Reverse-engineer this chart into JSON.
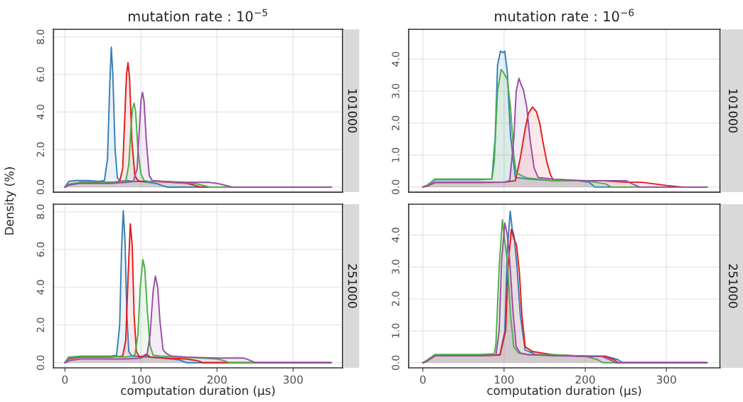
{
  "chart_data": [
    {
      "type": "area",
      "title": "mutation rate : 10$^{−5}$",
      "annotations": [
        "101000"
      ],
      "xlim": [
        -15,
        365
      ],
      "xticks": [
        0,
        100,
        200,
        300
      ],
      "ylim": [
        -0.27,
        8.4
      ],
      "yticks": [
        {
          "value": 0,
          "label": "0.0"
        },
        {
          "value": 2,
          "label": "2.0"
        },
        {
          "value": 4,
          "label": "4.0"
        },
        {
          "value": 6,
          "label": "6.0"
        },
        {
          "value": 8,
          "label": "8.0"
        }
      ],
      "tick_labels": "y",
      "grid": true,
      "series": [
        {
          "color": "#377eb8",
          "x": [
            0,
            5,
            15,
            30,
            45,
            52,
            56,
            59,
            61,
            63,
            66,
            69,
            73,
            80,
            90,
            100,
            110,
            120,
            128,
            135,
            350
          ],
          "values": [
            0,
            0.3,
            0.35,
            0.35,
            0.3,
            0.35,
            1.5,
            5.5,
            7.45,
            6.0,
            2.0,
            0.5,
            0.3,
            0.35,
            0.3,
            0.3,
            0.25,
            0.2,
            0.08,
            0,
            0
          ]
        },
        {
          "color": "#e41a1c",
          "x": [
            0,
            5,
            20,
            40,
            60,
            72,
            76,
            79,
            81,
            83,
            85,
            88,
            92,
            96,
            100,
            120,
            140,
            160,
            170,
            178,
            350
          ],
          "values": [
            0,
            0.15,
            0.25,
            0.25,
            0.25,
            0.3,
            1.0,
            4.0,
            6.0,
            6.62,
            5.8,
            2.5,
            0.6,
            0.35,
            0.3,
            0.3,
            0.25,
            0.2,
            0.1,
            0,
            0
          ]
        },
        {
          "color": "#4daf4a",
          "x": [
            0,
            5,
            20,
            40,
            60,
            80,
            84,
            87,
            89,
            91,
            93,
            96,
            100,
            104,
            110,
            130,
            150,
            170,
            180,
            190,
            350
          ],
          "values": [
            0,
            0.15,
            0.25,
            0.25,
            0.25,
            0.3,
            1.2,
            3.2,
            4.2,
            4.47,
            4.0,
            2.0,
            0.7,
            0.35,
            0.3,
            0.3,
            0.25,
            0.2,
            0.1,
            0,
            0
          ]
        },
        {
          "color": "#984ea3",
          "x": [
            0,
            5,
            20,
            40,
            60,
            80,
            90,
            95,
            98,
            100,
            102,
            104,
            107,
            111,
            115,
            130,
            160,
            190,
            200,
            210,
            220,
            350
          ],
          "values": [
            0,
            0.1,
            0.2,
            0.2,
            0.2,
            0.25,
            0.3,
            1.0,
            3.2,
            4.6,
            5.04,
            4.6,
            2.5,
            0.6,
            0.35,
            0.3,
            0.25,
            0.25,
            0.2,
            0.1,
            0,
            0
          ]
        }
      ]
    },
    {
      "type": "area",
      "title": "mutation rate : 10$^{−6}$",
      "annotations": [
        "101000"
      ],
      "xlim": [
        -17.5,
        366
      ],
      "xticks": [
        0,
        100,
        200,
        300
      ],
      "ylim": [
        -0.16,
        4.93
      ],
      "yticks": [
        {
          "value": 0,
          "label": "0.0"
        },
        {
          "value": 1,
          "label": "1.0"
        },
        {
          "value": 2,
          "label": "2.0"
        },
        {
          "value": 3,
          "label": "3.0"
        },
        {
          "value": 4,
          "label": "4.0"
        }
      ],
      "tick_labels": "y",
      "grid": true,
      "series": [
        {
          "color": "#377eb8",
          "x": [
            0,
            5,
            15,
            40,
            70,
            85,
            89,
            92,
            95.6,
            98.5,
            100.9,
            104,
            108,
            114,
            130,
            160,
            190,
            205,
            212,
            350
          ],
          "values": [
            0,
            0.05,
            0.23,
            0.23,
            0.23,
            0.25,
            1.5,
            3.8,
            4.25,
            4.2,
            4.25,
            3.6,
            1.6,
            0.3,
            0.25,
            0.2,
            0.2,
            0.15,
            0,
            0
          ]
        },
        {
          "color": "#e41a1c",
          "x": [
            0,
            5,
            15,
            40,
            70,
            100,
            114,
            120,
            125.7,
            130,
            135,
            140,
            144,
            148,
            152.6,
            157,
            161,
            180,
            220,
            250,
            270,
            300,
            320,
            350
          ],
          "values": [
            0,
            0.03,
            0.14,
            0.14,
            0.14,
            0.15,
            0.2,
            0.9,
            1.77,
            2.3,
            2.5,
            2.35,
            2.0,
            1.4,
            0.8,
            0.4,
            0.2,
            0.2,
            0.2,
            0.15,
            0.15,
            0.05,
            0,
            0
          ]
        },
        {
          "color": "#4daf4a",
          "x": [
            0,
            5,
            15,
            40,
            70,
            85,
            88,
            92,
            96.5,
            100,
            104,
            108,
            112,
            115,
            122,
            129,
            160,
            200,
            225,
            232,
            350
          ],
          "values": [
            0,
            0.05,
            0.25,
            0.25,
            0.25,
            0.25,
            0.8,
            3.0,
            3.68,
            3.55,
            3.36,
            2.5,
            1.0,
            0.45,
            0.35,
            0.28,
            0.2,
            0.2,
            0.1,
            0,
            0
          ]
        },
        {
          "color": "#984ea3",
          "x": [
            0,
            5,
            15,
            40,
            70,
            100,
            107,
            112,
            115,
            118.4,
            121,
            124,
            128,
            132,
            137,
            142,
            160,
            200,
            240,
            250,
            258,
            267,
            350
          ],
          "values": [
            0,
            0.03,
            0.15,
            0.15,
            0.15,
            0.15,
            0.2,
            1.5,
            3.0,
            3.4,
            3.2,
            3.03,
            2.5,
            1.5,
            0.6,
            0.3,
            0.25,
            0.2,
            0.2,
            0.2,
            0.1,
            0,
            0
          ]
        }
      ]
    },
    {
      "type": "area",
      "xlabel": "computation duration (µs)",
      "ylabel": "Density (%)",
      "annotations": [
        "251000"
      ],
      "xlim": [
        -15,
        365
      ],
      "xticks": [
        0,
        100,
        200,
        300
      ],
      "ylim": [
        -0.27,
        8.4
      ],
      "yticks": [
        {
          "value": 0,
          "label": "0.0"
        },
        {
          "value": 2,
          "label": "2.0"
        },
        {
          "value": 4,
          "label": "4.0"
        },
        {
          "value": 6,
          "label": "6.0"
        },
        {
          "value": 8,
          "label": "8.0"
        }
      ],
      "grid": true,
      "series": [
        {
          "color": "#377eb8",
          "x": [
            0,
            5,
            20,
            40,
            60,
            68,
            72,
            74.5,
            76.7,
            79,
            81.5,
            84,
            88,
            95,
            110,
            130,
            150,
            157,
            160,
            350
          ],
          "values": [
            0,
            0.3,
            0.34,
            0.34,
            0.34,
            0.4,
            2.0,
            6.0,
            8.05,
            6.5,
            2.5,
            0.6,
            0.35,
            0.34,
            0.3,
            0.25,
            0.15,
            0.05,
            0,
            0
          ]
        },
        {
          "color": "#e41a1c",
          "x": [
            0,
            5,
            20,
            40,
            60,
            76,
            80,
            83,
            86,
            88.5,
            91,
            94,
            98,
            103,
            107,
            112,
            130,
            160,
            175,
            182,
            350
          ],
          "values": [
            0,
            0.2,
            0.3,
            0.3,
            0.3,
            0.35,
            1.2,
            4.5,
            7.36,
            6.2,
            2.5,
            0.6,
            0.3,
            0.35,
            0.45,
            0.3,
            0.25,
            0.2,
            0.1,
            0,
            0
          ]
        },
        {
          "color": "#4daf4a",
          "x": [
            0,
            5,
            20,
            40,
            60,
            80,
            92,
            96,
            99,
            102.5,
            105,
            108,
            112,
            116,
            125,
            150,
            180,
            200,
            210,
            216,
            350
          ],
          "values": [
            0,
            0.25,
            0.34,
            0.34,
            0.34,
            0.3,
            0.4,
            1.5,
            4.0,
            5.47,
            5.0,
            3.0,
            0.9,
            0.4,
            0.35,
            0.3,
            0.25,
            0.2,
            0.1,
            0,
            0
          ]
        },
        {
          "color": "#984ea3",
          "x": [
            0,
            5,
            20,
            40,
            60,
            80,
            100,
            108,
            112,
            116,
            119,
            122,
            125,
            129,
            133,
            140,
            160,
            200,
            235,
            242,
            251,
            350
          ],
          "values": [
            0,
            0.1,
            0.2,
            0.2,
            0.2,
            0.2,
            0.25,
            0.4,
            1.5,
            3.8,
            4.59,
            4.0,
            2.2,
            0.7,
            0.5,
            0.35,
            0.3,
            0.25,
            0.25,
            0.15,
            0,
            0
          ]
        }
      ]
    },
    {
      "type": "area",
      "xlabel": "computation duration (µs)",
      "annotations": [
        "251000"
      ],
      "xlim": [
        -17.5,
        366
      ],
      "xticks": [
        0,
        100,
        200,
        300
      ],
      "ylim": [
        -0.16,
        4.96
      ],
      "yticks": [
        {
          "value": 0,
          "label": "0.0"
        },
        {
          "value": 1,
          "label": "1.0"
        },
        {
          "value": 2,
          "label": "2.0"
        },
        {
          "value": 3,
          "label": "3.0"
        },
        {
          "value": 4,
          "label": "4.0"
        }
      ],
      "grid": true,
      "series": [
        {
          "color": "#377eb8",
          "x": [
            0,
            5,
            15,
            40,
            70,
            95,
            101,
            104,
            107.6,
            110,
            112.6,
            116,
            120,
            126,
            140,
            180,
            210,
            225,
            240,
            246,
            350
          ],
          "values": [
            0,
            0.05,
            0.24,
            0.24,
            0.24,
            0.25,
            1.0,
            3.5,
            4.74,
            4.2,
            3.93,
            3.0,
            1.5,
            0.4,
            0.25,
            0.22,
            0.2,
            0.2,
            0.1,
            0,
            0
          ]
        },
        {
          "color": "#e41a1c",
          "x": [
            0,
            5,
            15,
            40,
            70,
            95,
            102,
            105,
            109,
            112,
            115.5,
            119,
            122,
            126,
            135,
            160,
            200,
            225,
            235,
            241,
            350
          ],
          "values": [
            0,
            0.05,
            0.22,
            0.22,
            0.22,
            0.24,
            1.0,
            3.0,
            4.17,
            3.9,
            3.67,
            2.8,
            1.5,
            0.5,
            0.35,
            0.25,
            0.2,
            0.2,
            0.1,
            0,
            0
          ]
        },
        {
          "color": "#4daf4a",
          "x": [
            0,
            5,
            15,
            40,
            70,
            88,
            90,
            94,
            98,
            101,
            104,
            108,
            112,
            118,
            130,
            160,
            200,
            215,
            222,
            350
          ],
          "values": [
            0,
            0.08,
            0.26,
            0.26,
            0.26,
            0.28,
            0.6,
            3.0,
            4.47,
            3.8,
            3.2,
            1.5,
            0.5,
            0.3,
            0.25,
            0.25,
            0.2,
            0.1,
            0,
            0
          ]
        },
        {
          "color": "#984ea3",
          "x": [
            0,
            5,
            15,
            40,
            70,
            90,
            94,
            97,
            101,
            104,
            107,
            111,
            115,
            120,
            130,
            160,
            200,
            220,
            230,
            238,
            350
          ],
          "values": [
            0,
            0.05,
            0.22,
            0.22,
            0.22,
            0.24,
            1.0,
            3.2,
            4.37,
            4.0,
            3.2,
            1.6,
            0.5,
            0.3,
            0.25,
            0.22,
            0.2,
            0.2,
            0.1,
            0,
            0
          ]
        }
      ]
    }
  ]
}
